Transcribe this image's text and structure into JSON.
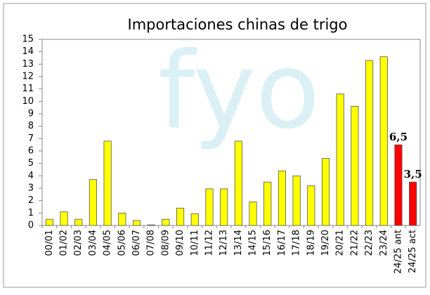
{
  "chart_data": {
    "type": "bar",
    "title": "Importaciones chinas de trigo",
    "watermark": "fyo",
    "categories": [
      "00/01",
      "01/02",
      "02/03",
      "03/04",
      "04/05",
      "05/06",
      "06/07",
      "07/08",
      "08/09",
      "09/10",
      "10/11",
      "11/12",
      "12/13",
      "13/14",
      "14/15",
      "15/16",
      "16/17",
      "17/18",
      "18/19",
      "19/20",
      "20/21",
      "21/22",
      "22/23",
      "23/24",
      "24/25 ant",
      "24/25 act"
    ],
    "values": [
      0.5,
      1.1,
      0.5,
      3.7,
      6.8,
      1.0,
      0.4,
      0.05,
      0.5,
      1.4,
      0.95,
      2.95,
      2.95,
      6.8,
      1.9,
      3.5,
      4.4,
      4.0,
      3.2,
      5.4,
      10.6,
      9.6,
      13.3,
      13.6,
      6.5,
      3.5
    ],
    "value_labels": [
      null,
      null,
      null,
      null,
      null,
      null,
      null,
      null,
      null,
      null,
      null,
      null,
      null,
      null,
      null,
      null,
      null,
      null,
      null,
      null,
      null,
      null,
      null,
      null,
      "6,5",
      "3,5"
    ],
    "colors": [
      "#ffff00",
      "#ffff00",
      "#ffff00",
      "#ffff00",
      "#ffff00",
      "#ffff00",
      "#ffff00",
      "#ffff00",
      "#ffff00",
      "#ffff00",
      "#ffff00",
      "#ffff00",
      "#ffff00",
      "#ffff00",
      "#ffff00",
      "#ffff00",
      "#ffff00",
      "#ffff00",
      "#ffff00",
      "#ffff00",
      "#ffff00",
      "#ffff00",
      "#ffff00",
      "#ffff00",
      "#ff0000",
      "#ff0000"
    ],
    "ylim": [
      0,
      15
    ],
    "yticks": [
      0,
      1,
      2,
      3,
      4,
      5,
      6,
      7,
      8,
      9,
      10,
      11,
      12,
      13,
      14,
      15
    ],
    "grid": false
  }
}
